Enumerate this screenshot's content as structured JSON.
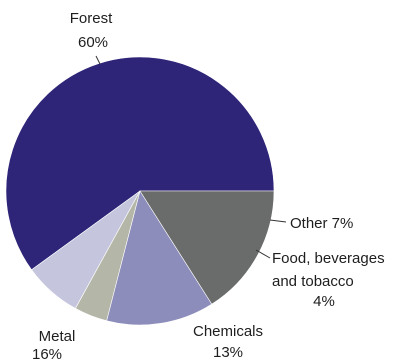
{
  "chart_data": {
    "type": "pie",
    "slices": [
      {
        "label": "Forest",
        "value_label": "60%",
        "value": 60,
        "color": "#2e2478"
      },
      {
        "label": "Other",
        "value_label": "7%",
        "value": 7,
        "color": "#c5c6dd"
      },
      {
        "label": "Food, beverages and tobacco",
        "value_label": "4%",
        "value": 4,
        "color": "#b4b6a8"
      },
      {
        "label": "Chemicals",
        "value_label": "13%",
        "value": 13,
        "color": "#8c8dba"
      },
      {
        "label": "Metal",
        "value_label": "16%",
        "value": 16,
        "color": "#6a6b6b"
      }
    ],
    "labels": {
      "forest_name": "Forest",
      "forest_pct": "60%",
      "other": "Other  7%",
      "food_line1": "Food, beverages",
      "food_line2": "and tobacco",
      "food_pct": "4%",
      "chemicals_name": "Chemicals",
      "chemicals_pct": "13%",
      "metal_name": "Metal",
      "metal_pct": "16%"
    }
  }
}
